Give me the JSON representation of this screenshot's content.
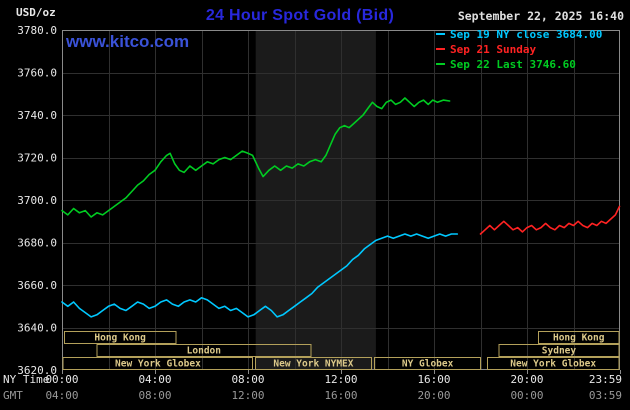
{
  "header": {
    "unit_label": "USD/oz",
    "title": "24 Hour Spot Gold (Bid)",
    "datetime": "September 22, 2025 16:40",
    "watermark": "www.kitco.com"
  },
  "legend": [
    {
      "label": "Sep 19 NY close 3684.00",
      "color": "#00c8ff"
    },
    {
      "label": "Sep 21 Sunday",
      "color": "#ff2222"
    },
    {
      "label": "Sep 22 Last 3746.60",
      "color": "#00cc22"
    }
  ],
  "axes": {
    "ny_row_label": "NY Time",
    "gmt_row_label": "GMT"
  },
  "colors": {
    "background": "#000000",
    "band": "#1b1b1b",
    "grid": "#2f2f2f",
    "border": "#8a8a8a",
    "axis_text": "#e8e8e8",
    "gmt_text": "#999999",
    "title": "#2828dd",
    "watermark": "#3a52d8",
    "datetime": "#e0e0e0",
    "unit": "#e8e8e8",
    "session_border": "#b3a05a",
    "session_text": "#dcc98a"
  },
  "chart_data": {
    "type": "line",
    "title": "24 Hour Spot Gold (Bid)",
    "xlabel": "NY Time",
    "ylabel": "USD/oz",
    "ylim": [
      3620,
      3780
    ],
    "xlim_hours": [
      0,
      24
    ],
    "grid": {
      "x_interval_hours": 2,
      "y_interval": 20
    },
    "highlight_band_hours": [
      8.33,
      13.5
    ],
    "legend_position": "top-right",
    "y_ticks": [
      {
        "value": 3780,
        "label": "3780.0"
      },
      {
        "value": 3760,
        "label": "3760.0"
      },
      {
        "value": 3740,
        "label": "3740.0"
      },
      {
        "value": 3720,
        "label": "3720.0"
      },
      {
        "value": 3700,
        "label": "3700.0"
      },
      {
        "value": 3680,
        "label": "3680.0"
      },
      {
        "value": 3660,
        "label": "3660.0"
      },
      {
        "value": 3640,
        "label": "3640.0"
      },
      {
        "value": 3620,
        "label": "3620.0"
      }
    ],
    "x_ticks": [
      {
        "hours": 0,
        "ny_label": "00:00",
        "gmt_label": "04:00"
      },
      {
        "hours": 4,
        "ny_label": "04:00",
        "gmt_label": "08:00"
      },
      {
        "hours": 8,
        "ny_label": "08:00",
        "gmt_label": "12:00"
      },
      {
        "hours": 12,
        "ny_label": "12:00",
        "gmt_label": "16:00"
      },
      {
        "hours": 16,
        "ny_label": "16:00",
        "gmt_label": "20:00"
      },
      {
        "hours": 20,
        "ny_label": "20:00",
        "gmt_label": "00:00"
      },
      {
        "hours": 23.983,
        "ny_label": "23:59",
        "gmt_label": "03:59"
      }
    ],
    "sessions": [
      {
        "label": "Hong Kong",
        "row": 0,
        "start": 0.1,
        "end": 4.9
      },
      {
        "label": "Hong Kong",
        "row": 0,
        "start": 20.5,
        "end": 23.95
      },
      {
        "label": "London",
        "row": 1,
        "start": 1.5,
        "end": 10.7
      },
      {
        "label": "Sydney",
        "row": 1,
        "start": 18.8,
        "end": 23.95
      },
      {
        "label": "New York Globex",
        "row": 2,
        "start": 0.05,
        "end": 8.2
      },
      {
        "label": "New York NYMEX",
        "row": 2,
        "start": 8.33,
        "end": 13.3
      },
      {
        "label": "NY Globex",
        "row": 2,
        "start": 13.45,
        "end": 18.0
      },
      {
        "label": "New York Globex",
        "row": 2,
        "start": 18.3,
        "end": 23.95
      }
    ],
    "series": [
      {
        "name": "Sep 19 (Friday, NY close 3684.00)",
        "color": "#00c8ff",
        "points": [
          [
            0,
            3652
          ],
          [
            0.25,
            3650
          ],
          [
            0.5,
            3652
          ],
          [
            0.75,
            3649
          ],
          [
            1,
            3647
          ],
          [
            1.25,
            3645
          ],
          [
            1.5,
            3646
          ],
          [
            1.75,
            3648
          ],
          [
            2,
            3650
          ],
          [
            2.25,
            3651
          ],
          [
            2.5,
            3649
          ],
          [
            2.75,
            3648
          ],
          [
            3,
            3650
          ],
          [
            3.25,
            3652
          ],
          [
            3.5,
            3651
          ],
          [
            3.75,
            3649
          ],
          [
            4,
            3650
          ],
          [
            4.25,
            3652
          ],
          [
            4.5,
            3653
          ],
          [
            4.75,
            3651
          ],
          [
            5,
            3650
          ],
          [
            5.25,
            3652
          ],
          [
            5.5,
            3653
          ],
          [
            5.75,
            3652
          ],
          [
            6,
            3654
          ],
          [
            6.25,
            3653
          ],
          [
            6.5,
            3651
          ],
          [
            6.75,
            3649
          ],
          [
            7,
            3650
          ],
          [
            7.25,
            3648
          ],
          [
            7.5,
            3649
          ],
          [
            7.75,
            3647
          ],
          [
            8,
            3645
          ],
          [
            8.25,
            3646
          ],
          [
            8.5,
            3648
          ],
          [
            8.75,
            3650
          ],
          [
            9,
            3648
          ],
          [
            9.25,
            3645
          ],
          [
            9.5,
            3646
          ],
          [
            9.75,
            3648
          ],
          [
            10,
            3650
          ],
          [
            10.25,
            3652
          ],
          [
            10.5,
            3654
          ],
          [
            10.75,
            3656
          ],
          [
            11,
            3659
          ],
          [
            11.25,
            3661
          ],
          [
            11.5,
            3663
          ],
          [
            11.75,
            3665
          ],
          [
            12,
            3667
          ],
          [
            12.25,
            3669
          ],
          [
            12.5,
            3672
          ],
          [
            12.75,
            3674
          ],
          [
            13,
            3677
          ],
          [
            13.25,
            3679
          ],
          [
            13.5,
            3681
          ],
          [
            13.75,
            3682
          ],
          [
            14,
            3683
          ],
          [
            14.25,
            3682
          ],
          [
            14.5,
            3683
          ],
          [
            14.75,
            3684
          ],
          [
            15,
            3683
          ],
          [
            15.25,
            3684
          ],
          [
            15.5,
            3683
          ],
          [
            15.75,
            3682
          ],
          [
            16,
            3683
          ],
          [
            16.25,
            3684
          ],
          [
            16.5,
            3683
          ],
          [
            16.75,
            3684
          ],
          [
            17,
            3684
          ]
        ]
      },
      {
        "name": "Sep 21 (Sunday)",
        "color": "#ff2222",
        "points": [
          [
            18,
            3684
          ],
          [
            18.2,
            3686
          ],
          [
            18.4,
            3688
          ],
          [
            18.6,
            3686
          ],
          [
            18.8,
            3688
          ],
          [
            19,
            3690
          ],
          [
            19.2,
            3688
          ],
          [
            19.4,
            3686
          ],
          [
            19.6,
            3687
          ],
          [
            19.8,
            3685
          ],
          [
            20,
            3687
          ],
          [
            20.2,
            3688
          ],
          [
            20.4,
            3686
          ],
          [
            20.6,
            3687
          ],
          [
            20.8,
            3689
          ],
          [
            21,
            3687
          ],
          [
            21.2,
            3686
          ],
          [
            21.4,
            3688
          ],
          [
            21.6,
            3687
          ],
          [
            21.8,
            3689
          ],
          [
            22,
            3688
          ],
          [
            22.2,
            3690
          ],
          [
            22.4,
            3688
          ],
          [
            22.6,
            3687
          ],
          [
            22.8,
            3689
          ],
          [
            23,
            3688
          ],
          [
            23.2,
            3690
          ],
          [
            23.4,
            3689
          ],
          [
            23.6,
            3691
          ],
          [
            23.8,
            3693
          ],
          [
            23.98,
            3697
          ]
        ]
      },
      {
        "name": "Sep 22 (Last 3746.60)",
        "color": "#00cc22",
        "points": [
          [
            0,
            3695
          ],
          [
            0.25,
            3693
          ],
          [
            0.5,
            3696
          ],
          [
            0.75,
            3694
          ],
          [
            1,
            3695
          ],
          [
            1.25,
            3692
          ],
          [
            1.5,
            3694
          ],
          [
            1.75,
            3693
          ],
          [
            2,
            3695
          ],
          [
            2.25,
            3697
          ],
          [
            2.5,
            3699
          ],
          [
            2.75,
            3701
          ],
          [
            3,
            3704
          ],
          [
            3.25,
            3707
          ],
          [
            3.5,
            3709
          ],
          [
            3.75,
            3712
          ],
          [
            4,
            3714
          ],
          [
            4.25,
            3718
          ],
          [
            4.5,
            3721
          ],
          [
            4.65,
            3722
          ],
          [
            4.85,
            3717
          ],
          [
            5.05,
            3714
          ],
          [
            5.25,
            3713
          ],
          [
            5.5,
            3716
          ],
          [
            5.75,
            3714
          ],
          [
            6,
            3716
          ],
          [
            6.25,
            3718
          ],
          [
            6.5,
            3717
          ],
          [
            6.75,
            3719
          ],
          [
            7,
            3720
          ],
          [
            7.25,
            3719
          ],
          [
            7.5,
            3721
          ],
          [
            7.75,
            3723
          ],
          [
            8,
            3722
          ],
          [
            8.2,
            3721
          ],
          [
            8.45,
            3715
          ],
          [
            8.65,
            3711
          ],
          [
            8.9,
            3714
          ],
          [
            9.15,
            3716
          ],
          [
            9.4,
            3714
          ],
          [
            9.65,
            3716
          ],
          [
            9.9,
            3715
          ],
          [
            10.15,
            3717
          ],
          [
            10.4,
            3716
          ],
          [
            10.65,
            3718
          ],
          [
            10.9,
            3719
          ],
          [
            11.15,
            3718
          ],
          [
            11.35,
            3721
          ],
          [
            11.55,
            3726
          ],
          [
            11.75,
            3731
          ],
          [
            11.95,
            3734
          ],
          [
            12.15,
            3735
          ],
          [
            12.35,
            3734
          ],
          [
            12.55,
            3736
          ],
          [
            12.75,
            3738
          ],
          [
            12.95,
            3740
          ],
          [
            13.15,
            3743
          ],
          [
            13.35,
            3746
          ],
          [
            13.55,
            3744
          ],
          [
            13.75,
            3743
          ],
          [
            13.95,
            3746
          ],
          [
            14.15,
            3747
          ],
          [
            14.35,
            3745
          ],
          [
            14.55,
            3746
          ],
          [
            14.75,
            3748
          ],
          [
            14.95,
            3746
          ],
          [
            15.15,
            3744
          ],
          [
            15.35,
            3746
          ],
          [
            15.55,
            3747
          ],
          [
            15.75,
            3745
          ],
          [
            15.95,
            3747
          ],
          [
            16.15,
            3746
          ],
          [
            16.4,
            3747
          ],
          [
            16.67,
            3746.6
          ]
        ]
      }
    ]
  }
}
